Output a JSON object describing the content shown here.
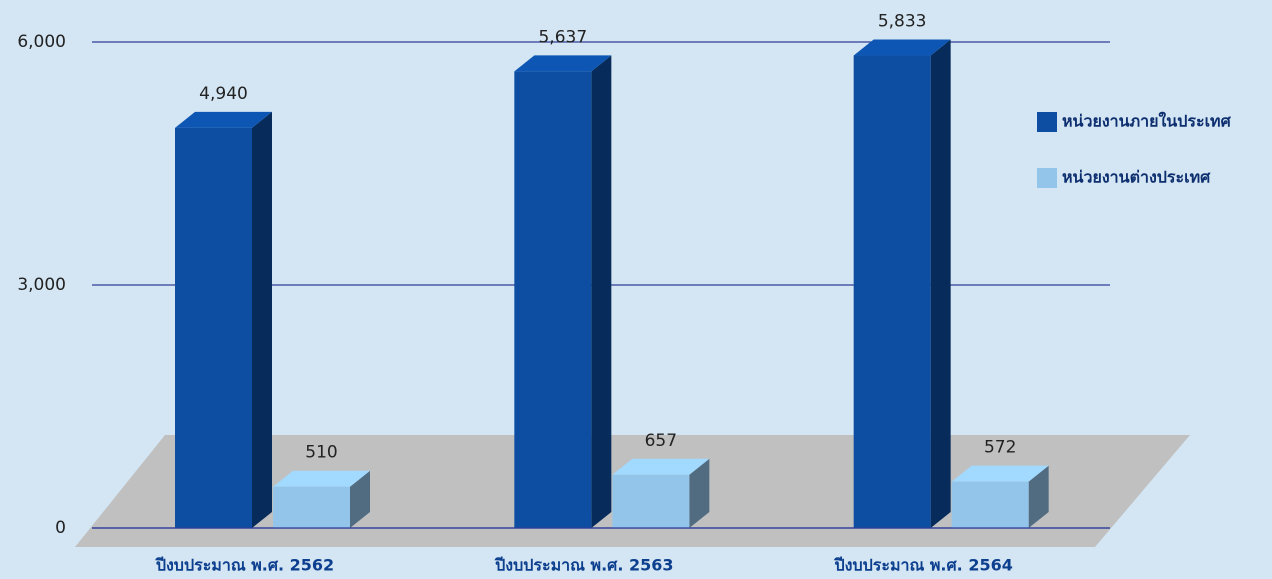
{
  "chart_data": {
    "type": "bar3d",
    "categories": [
      "ปีงบประมาณ พ.ศ. 2562",
      "ปีงบประมาณ พ.ศ. 2563",
      "ปีงบประมาณ พ.ศ. 2564"
    ],
    "series": [
      {
        "name": "หน่วยงานภายในประเทศ",
        "color": "#0d4ea3",
        "values": [
          4940,
          5637,
          5833
        ],
        "value_labels": [
          "4,940",
          "5,637",
          "5,833"
        ]
      },
      {
        "name": "หน่วยงานต่างประเทศ",
        "color": "#93c5ea",
        "values": [
          510,
          657,
          572
        ],
        "value_labels": [
          "510",
          "657",
          "572"
        ]
      }
    ],
    "ylim": [
      0,
      6000
    ],
    "yticks": [
      0,
      {
        "value": 3000,
        "label": "3,000"
      },
      {
        "value": 6000,
        "label": "6,000"
      }
    ],
    "grid": true,
    "legend": "right"
  }
}
